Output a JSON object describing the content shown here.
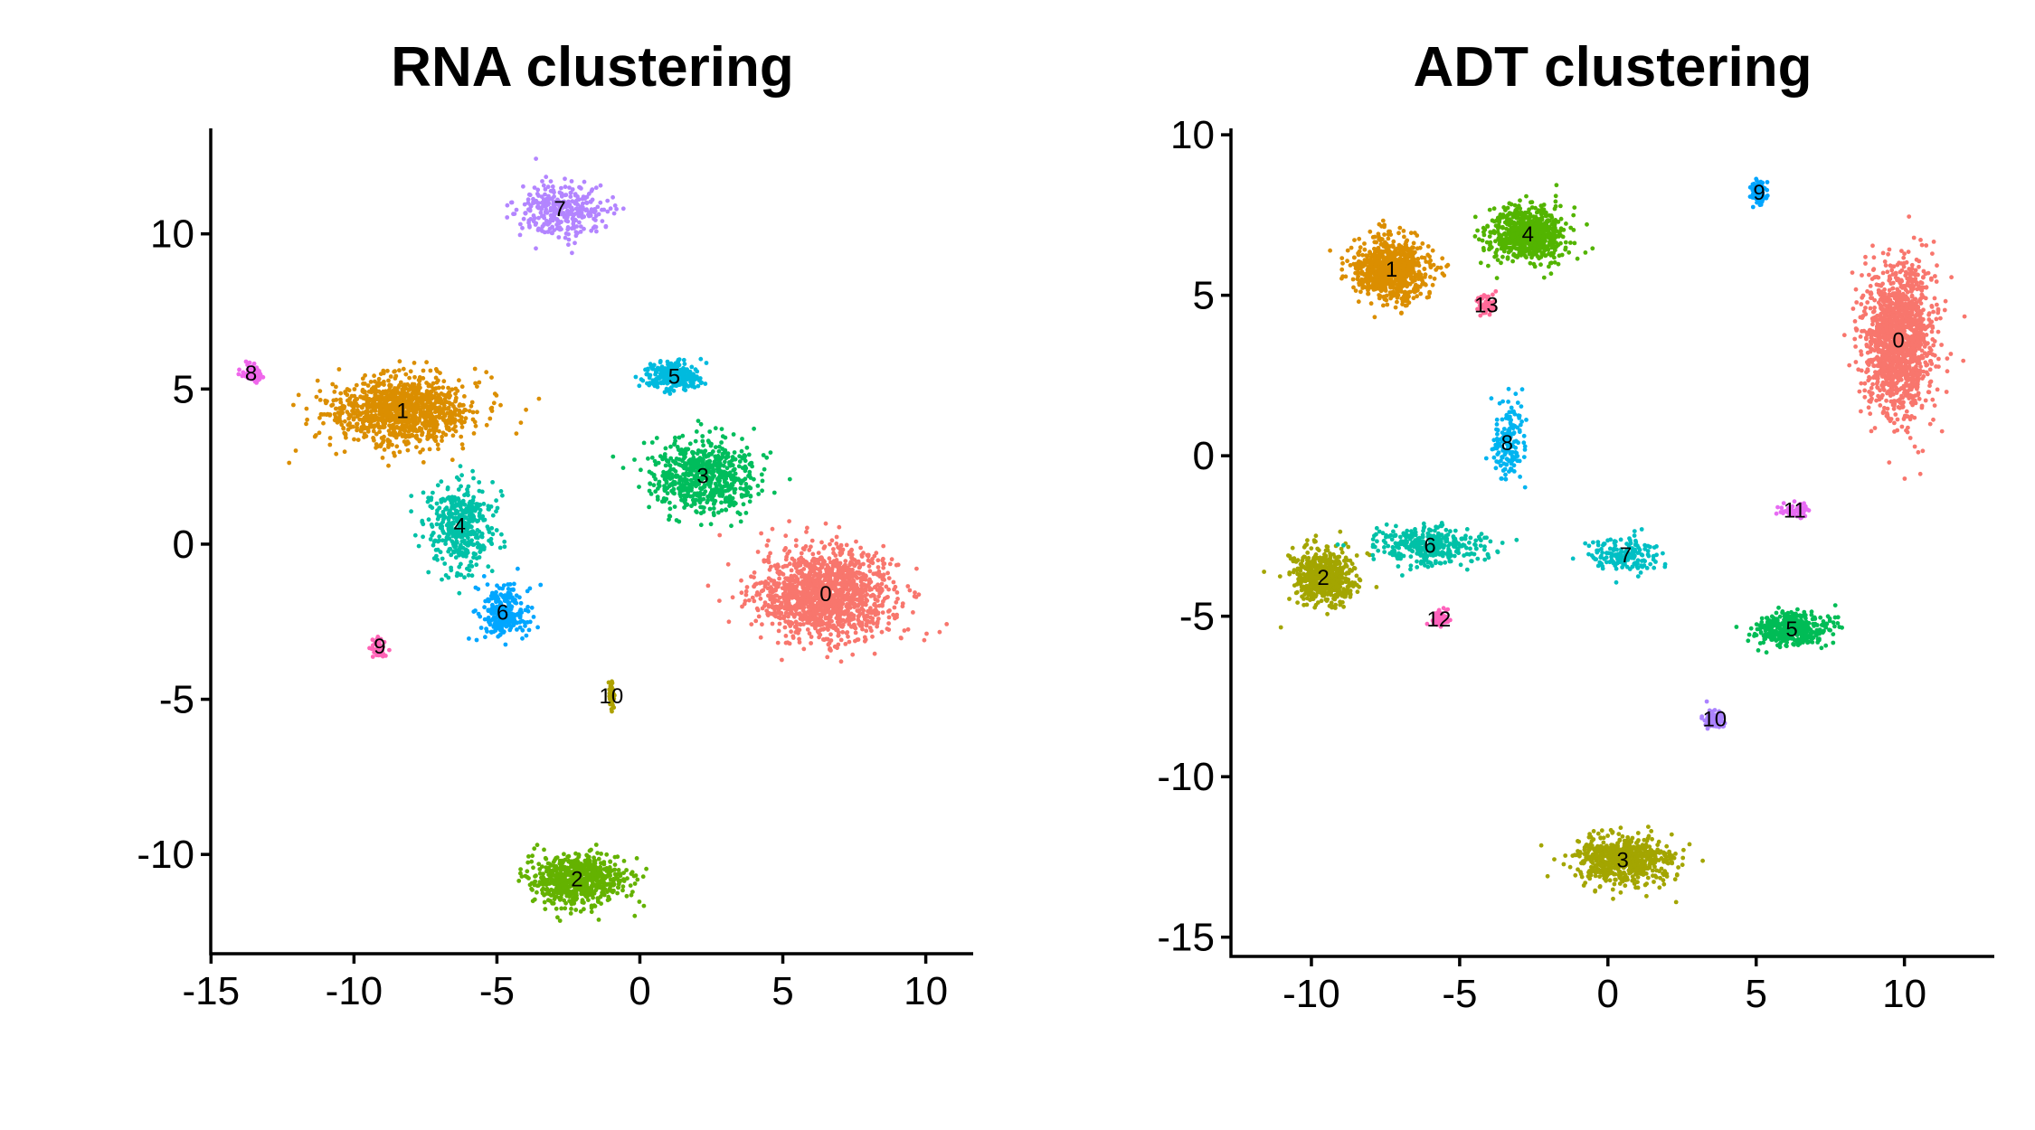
{
  "chart_data": [
    {
      "type": "scatter",
      "title": "RNA clustering",
      "xlabel": "",
      "ylabel": "",
      "xlim": [
        -15.2,
        11.5
      ],
      "ylim": [
        -13.2,
        13.4
      ],
      "x_ticks": [
        -15,
        -10,
        -5,
        0,
        5,
        10
      ],
      "y_ticks": [
        -10,
        -5,
        0,
        5,
        10
      ],
      "x_tick_labels": [
        "-15",
        "-10",
        "-5",
        "0",
        "5",
        "10"
      ],
      "y_tick_labels": [
        "-10",
        "-5",
        "0",
        "5",
        "10"
      ],
      "grid": false,
      "legend": "none",
      "clusters": [
        {
          "label": "0",
          "color": "#F8766D",
          "center": [
            6.5,
            -1.6
          ],
          "spread": [
            2.8,
            1.7
          ],
          "n": 1400
        },
        {
          "label": "1",
          "color": "#DB8E00",
          "center": [
            -8.3,
            4.3
          ],
          "spread": [
            3.0,
            1.3
          ],
          "n": 1100
        },
        {
          "label": "2",
          "color": "#64B200",
          "center": [
            -2.2,
            -10.8
          ],
          "spread": [
            2.0,
            0.9
          ],
          "n": 700
        },
        {
          "label": "3",
          "color": "#00BD5C",
          "center": [
            2.2,
            2.2
          ],
          "spread": [
            2.2,
            1.4
          ],
          "n": 650
        },
        {
          "label": "4",
          "color": "#00C1A7",
          "center": [
            -6.3,
            0.6
          ],
          "spread": [
            1.4,
            1.6
          ],
          "n": 400
        },
        {
          "label": "5",
          "color": "#00BADE",
          "center": [
            1.2,
            5.4
          ],
          "spread": [
            1.1,
            0.5
          ],
          "n": 300
        },
        {
          "label": "6",
          "color": "#00A6FF",
          "center": [
            -4.8,
            -2.2
          ],
          "spread": [
            1.1,
            1.0
          ],
          "n": 250
        },
        {
          "label": "7",
          "color": "#B385FF",
          "center": [
            -2.8,
            10.8
          ],
          "spread": [
            1.8,
            1.0
          ],
          "n": 320
        },
        {
          "label": "8",
          "color": "#EF67EB",
          "center": [
            -13.6,
            5.5
          ],
          "spread": [
            0.4,
            0.35
          ],
          "n": 80
        },
        {
          "label": "9",
          "color": "#FF63B6",
          "center": [
            -9.1,
            -3.3
          ],
          "spread": [
            0.3,
            0.35
          ],
          "n": 40
        },
        {
          "label": "10",
          "color": "#AEA200",
          "center": [
            -1.0,
            -4.9
          ],
          "spread": [
            0.12,
            0.5
          ],
          "n": 50
        }
      ]
    },
    {
      "type": "scatter",
      "title": "ADT clustering",
      "xlabel": "",
      "ylabel": "",
      "xlim": [
        -12.5,
        13.0
      ],
      "ylim": [
        -15.6,
        10.2
      ],
      "x_ticks": [
        -10,
        -5,
        0,
        5,
        10
      ],
      "y_ticks": [
        -15,
        -10,
        -5,
        0,
        5,
        10
      ],
      "x_tick_labels": [
        "-10",
        "-5",
        "0",
        "5",
        "10"
      ],
      "y_tick_labels": [
        "-15",
        "-10",
        "-5",
        "0",
        "5",
        "10"
      ],
      "grid": false,
      "legend": "none",
      "clusters": [
        {
          "label": "0",
          "color": "#F8766D",
          "center": [
            9.8,
            3.6
          ],
          "spread": [
            1.4,
            2.8
          ],
          "n": 1400
        },
        {
          "label": "1",
          "color": "#DB8E00",
          "center": [
            -7.3,
            5.8
          ],
          "spread": [
            1.5,
            1.2
          ],
          "n": 800
        },
        {
          "label": "2",
          "color": "#A3A500",
          "center": [
            -9.6,
            -3.8
          ],
          "spread": [
            1.2,
            1.0
          ],
          "n": 600
        },
        {
          "label": "3",
          "color": "#A3A500",
          "center": [
            0.5,
            -12.6
          ],
          "spread": [
            1.9,
            0.8
          ],
          "n": 650
        },
        {
          "label": "4",
          "color": "#53B400",
          "center": [
            -2.7,
            6.9
          ],
          "spread": [
            1.5,
            1.0
          ],
          "n": 750
        },
        {
          "label": "5",
          "color": "#00BC56",
          "center": [
            6.2,
            -5.4
          ],
          "spread": [
            1.5,
            0.6
          ],
          "n": 400
        },
        {
          "label": "6",
          "color": "#00C1A7",
          "center": [
            -6.0,
            -2.8
          ],
          "spread": [
            2.1,
            0.7
          ],
          "n": 380
        },
        {
          "label": "7",
          "color": "#00BFC4",
          "center": [
            0.6,
            -3.1
          ],
          "spread": [
            1.4,
            0.6
          ],
          "n": 160
        },
        {
          "label": "8",
          "color": "#00B4F0",
          "center": [
            -3.4,
            0.4
          ],
          "spread": [
            0.6,
            1.3
          ],
          "n": 160
        },
        {
          "label": "9",
          "color": "#00A5FF",
          "center": [
            5.1,
            8.2
          ],
          "spread": [
            0.3,
            0.45
          ],
          "n": 90
        },
        {
          "label": "10",
          "color": "#AB82FF",
          "center": [
            3.6,
            -8.2
          ],
          "spread": [
            0.5,
            0.35
          ],
          "n": 80
        },
        {
          "label": "11",
          "color": "#E76BF3",
          "center": [
            6.3,
            -1.7
          ],
          "spread": [
            0.5,
            0.25
          ],
          "n": 70
        },
        {
          "label": "12",
          "color": "#FF62BC",
          "center": [
            -5.7,
            -5.1
          ],
          "spread": [
            0.4,
            0.35
          ],
          "n": 60
        },
        {
          "label": "13",
          "color": "#FF6A98",
          "center": [
            -4.1,
            4.7
          ],
          "spread": [
            0.4,
            0.35
          ],
          "n": 60
        }
      ]
    }
  ]
}
